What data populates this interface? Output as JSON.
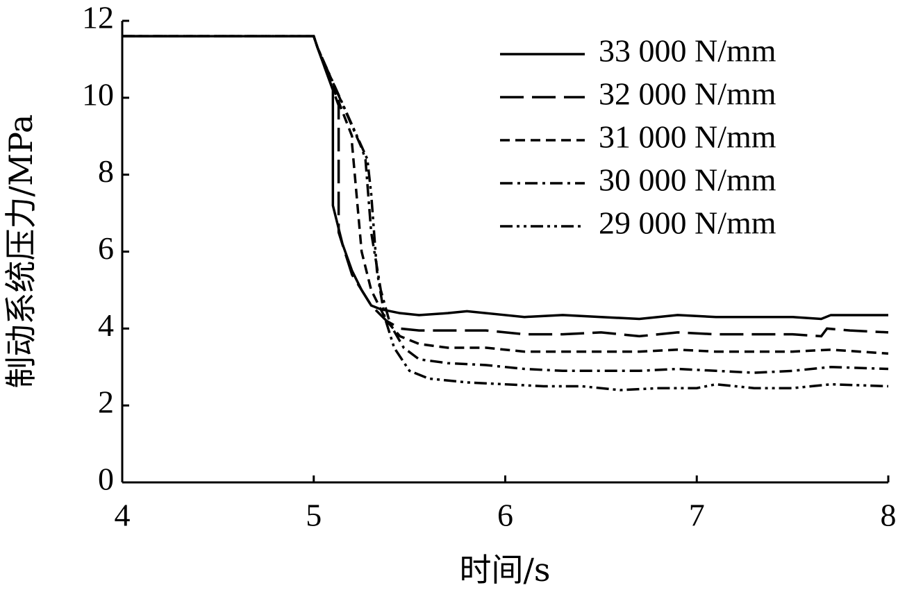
{
  "chart_data": {
    "type": "line",
    "xlabel": "时间/s",
    "ylabel": "制动系统压力/MPa",
    "xlim": [
      4,
      8
    ],
    "xticks": [
      4,
      5,
      6,
      7,
      8
    ],
    "ylim": [
      0,
      12
    ],
    "yticks": [
      0,
      2,
      4,
      6,
      8,
      10,
      12
    ],
    "legend": "top-right",
    "series": [
      {
        "name": "33 000 N/mm",
        "color": "#000000",
        "style": "solid",
        "x": [
          4,
          5,
          5.02,
          5.1,
          5.1,
          5.15,
          5.2,
          5.25,
          5.3,
          5.35,
          5.45,
          5.55,
          5.7,
          5.8,
          6,
          6.1,
          6.3,
          6.5,
          6.7,
          6.9,
          7.1,
          7.3,
          7.5,
          7.65,
          7.7,
          7.8,
          8
        ],
        "values": [
          11.6,
          11.6,
          11.3,
          10.2,
          7.2,
          6.2,
          5.5,
          5.0,
          4.6,
          4.5,
          4.4,
          4.35,
          4.4,
          4.45,
          4.35,
          4.3,
          4.35,
          4.3,
          4.25,
          4.35,
          4.3,
          4.3,
          4.3,
          4.25,
          4.35,
          4.35,
          4.35
        ]
      },
      {
        "name": "32 000 N/mm",
        "color": "#000000",
        "style": "long-dash",
        "x": [
          4,
          5,
          5.02,
          5.13,
          5.13,
          5.2,
          5.3,
          5.38,
          5.45,
          5.55,
          5.7,
          5.9,
          6.1,
          6.3,
          6.5,
          6.7,
          6.9,
          7.1,
          7.3,
          7.5,
          7.65,
          7.68,
          7.8,
          8
        ],
        "values": [
          11.6,
          11.6,
          11.3,
          9.8,
          6.5,
          5.4,
          4.6,
          4.2,
          4.0,
          3.95,
          3.95,
          3.95,
          3.85,
          3.85,
          3.9,
          3.8,
          3.9,
          3.85,
          3.85,
          3.85,
          3.8,
          4.0,
          3.95,
          3.9
        ]
      },
      {
        "name": "31 000 N/mm",
        "color": "#000000",
        "style": "dash",
        "x": [
          4,
          5,
          5.02,
          5.2,
          5.2,
          5.25,
          5.3,
          5.38,
          5.45,
          5.55,
          5.7,
          5.9,
          6.1,
          6.3,
          6.5,
          6.7,
          6.9,
          7.1,
          7.3,
          7.5,
          7.7,
          8
        ],
        "values": [
          11.6,
          11.6,
          11.3,
          9.0,
          8.8,
          6.0,
          5.0,
          4.2,
          3.8,
          3.6,
          3.5,
          3.5,
          3.4,
          3.4,
          3.4,
          3.4,
          3.45,
          3.4,
          3.4,
          3.4,
          3.45,
          3.35
        ]
      },
      {
        "name": "30 000 N/mm",
        "color": "#000000",
        "style": "dash-dot",
        "x": [
          4,
          5,
          5.02,
          5.25,
          5.27,
          5.3,
          5.35,
          5.4,
          5.47,
          5.55,
          5.7,
          5.9,
          6.1,
          6.3,
          6.5,
          6.7,
          6.9,
          7.1,
          7.3,
          7.5,
          7.7,
          8
        ],
        "values": [
          11.6,
          11.6,
          11.3,
          8.7,
          8.4,
          6.5,
          5.0,
          4.1,
          3.5,
          3.2,
          3.1,
          3.05,
          2.95,
          2.9,
          2.9,
          2.9,
          2.95,
          2.9,
          2.85,
          2.9,
          3.0,
          2.95
        ]
      },
      {
        "name": "29 000 N/mm",
        "color": "#000000",
        "style": "dash-dot-dot",
        "x": [
          4,
          5,
          5.02,
          5.28,
          5.3,
          5.33,
          5.37,
          5.42,
          5.5,
          5.6,
          5.8,
          6,
          6.2,
          6.4,
          6.6,
          6.8,
          7,
          7.1,
          7.3,
          7.5,
          7.7,
          8
        ],
        "values": [
          11.6,
          11.6,
          11.3,
          8.4,
          7.5,
          5.5,
          4.3,
          3.5,
          2.9,
          2.7,
          2.6,
          2.55,
          2.5,
          2.5,
          2.4,
          2.45,
          2.45,
          2.55,
          2.45,
          2.45,
          2.55,
          2.5
        ]
      }
    ]
  }
}
